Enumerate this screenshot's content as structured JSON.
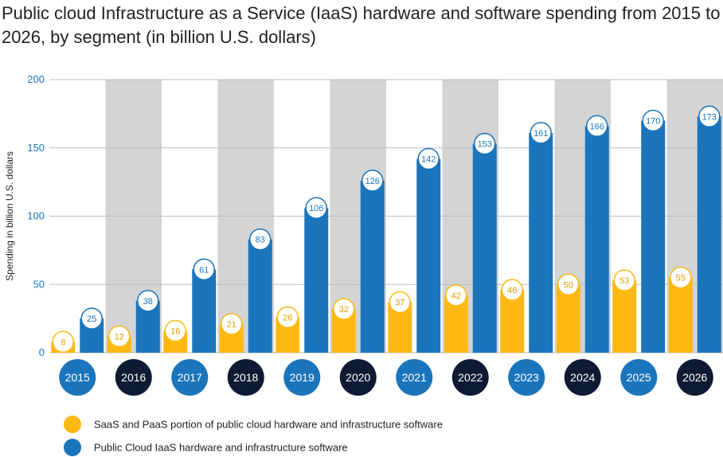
{
  "title": "Public cloud Infrastructure as a Service (IaaS) hardware and software spending from 2015 to 2026, by segment (in billion U.S. dollars)",
  "colors": {
    "saas_paas": "#FDB913",
    "iaas": "#1B75BC",
    "year_dark": "#0D1A33",
    "year_blue": "#1B75BC",
    "band": "#D4D4D4",
    "axis_text": "#1B75BC"
  },
  "chart_data": {
    "type": "bar",
    "title": "Public cloud Infrastructure as a Service (IaaS) hardware and software spending from 2015 to 2026, by segment (in billion U.S. dollars)",
    "ylabel": "Spending in billion U.S. dollars",
    "xlabel": "",
    "ylim": [
      0,
      200
    ],
    "yticks": [
      0,
      50,
      100,
      150,
      200
    ],
    "grid": true,
    "legend_position": "bottom-left",
    "categories": [
      "2015",
      "2016",
      "2017",
      "2018",
      "2019",
      "2020",
      "2021",
      "2022",
      "2023",
      "2024",
      "2025",
      "2026"
    ],
    "series": [
      {
        "name": "SaaS and PaaS portion of public cloud hardware and infrastructure software",
        "color": "#FDB913",
        "values": [
          8,
          12,
          16,
          21,
          26,
          32,
          37,
          42,
          46,
          50,
          53,
          55
        ]
      },
      {
        "name": "Public Cloud IaaS hardware and infrastructure software",
        "color": "#1B75BC",
        "values": [
          25,
          38,
          61,
          83,
          106,
          126,
          142,
          153,
          161,
          166,
          170,
          173
        ]
      }
    ]
  }
}
